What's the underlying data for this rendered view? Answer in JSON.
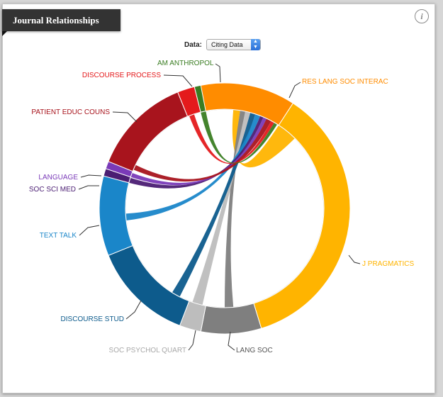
{
  "title": "Journal Relationships",
  "info_icon": "i",
  "data_control": {
    "label": "Data:",
    "selected": "Citing Data"
  },
  "chart_data": {
    "type": "chord",
    "focus_journal": "RES LANG SOC INTERAC",
    "groups": [
      {
        "name": "RES LANG SOC INTERAC",
        "color": "#ff8c00",
        "start": -16,
        "end": 33
      },
      {
        "name": "J PRAGMATICS",
        "color": "#ffb400",
        "start": 33,
        "end": 163
      },
      {
        "name": "LANG SOC",
        "color": "#7f7f7f",
        "start": 163,
        "end": 191
      },
      {
        "name": "SOC PSYCHOL QUART",
        "color": "#bdbdbd",
        "start": 191,
        "end": 201
      },
      {
        "name": "DISCOURSE STUD",
        "color": "#0d5b8c",
        "start": 201,
        "end": 248
      },
      {
        "name": "TEXT TALK",
        "color": "#1a86c9",
        "start": 248,
        "end": 285
      },
      {
        "name": "SOC SCI MED",
        "color": "#4b1e73",
        "start": 285,
        "end": 288.5
      },
      {
        "name": "LANGUAGE",
        "color": "#7a3ab8",
        "start": 288.5,
        "end": 292
      },
      {
        "name": "PATIENT EDUC COUNS",
        "color": "#a8141d",
        "start": 292,
        "end": 338
      },
      {
        "name": "DISCOURSE PROCESS",
        "color": "#e41a1c",
        "start": 338,
        "end": 346
      },
      {
        "name": "AM ANTHROPOL",
        "color": "#3a7d22",
        "start": 346,
        "end": 349
      }
    ],
    "ribbons": [
      {
        "source": "RES LANG SOC INTERAC",
        "target": "J PRAGMATICS",
        "src_span": [
          5,
          9
        ],
        "tgt_span": [
          33,
          45
        ]
      },
      {
        "source": "RES LANG SOC INTERAC",
        "target": "LANG SOC",
        "src_span": [
          9,
          12
        ],
        "tgt_span": [
          175,
          180
        ]
      },
      {
        "source": "RES LANG SOC INTERAC",
        "target": "SOC PSYCHOL QUART",
        "src_span": [
          12,
          15
        ],
        "tgt_span": [
          193,
          199
        ]
      },
      {
        "source": "RES LANG SOC INTERAC",
        "target": "DISCOURSE STUD",
        "src_span": [
          15,
          18
        ],
        "tgt_span": [
          207,
          212
        ]
      },
      {
        "source": "RES LANG SOC INTERAC",
        "target": "TEXT TALK",
        "src_span": [
          18,
          21
        ],
        "tgt_span": [
          263,
          267
        ]
      },
      {
        "source": "RES LANG SOC INTERAC",
        "target": "SOC SCI MED",
        "src_span": [
          21,
          23
        ],
        "tgt_span": [
          285,
          288
        ]
      },
      {
        "source": "RES LANG SOC INTERAC",
        "target": "LANGUAGE",
        "src_span": [
          23,
          25
        ],
        "tgt_span": [
          288.5,
          291
        ]
      },
      {
        "source": "RES LANG SOC INTERAC",
        "target": "PATIENT EDUC COUNS",
        "src_span": [
          25,
          28
        ],
        "tgt_span": [
          293,
          296
        ]
      },
      {
        "source": "RES LANG SOC INTERAC",
        "target": "DISCOURSE PROCESS",
        "src_span": [
          28,
          30
        ],
        "tgt_span": [
          339,
          342
        ]
      },
      {
        "source": "RES LANG SOC INTERAC",
        "target": "AM ANTHROPOL",
        "src_span": [
          30,
          32
        ],
        "tgt_span": [
          346,
          349
        ]
      }
    ]
  }
}
